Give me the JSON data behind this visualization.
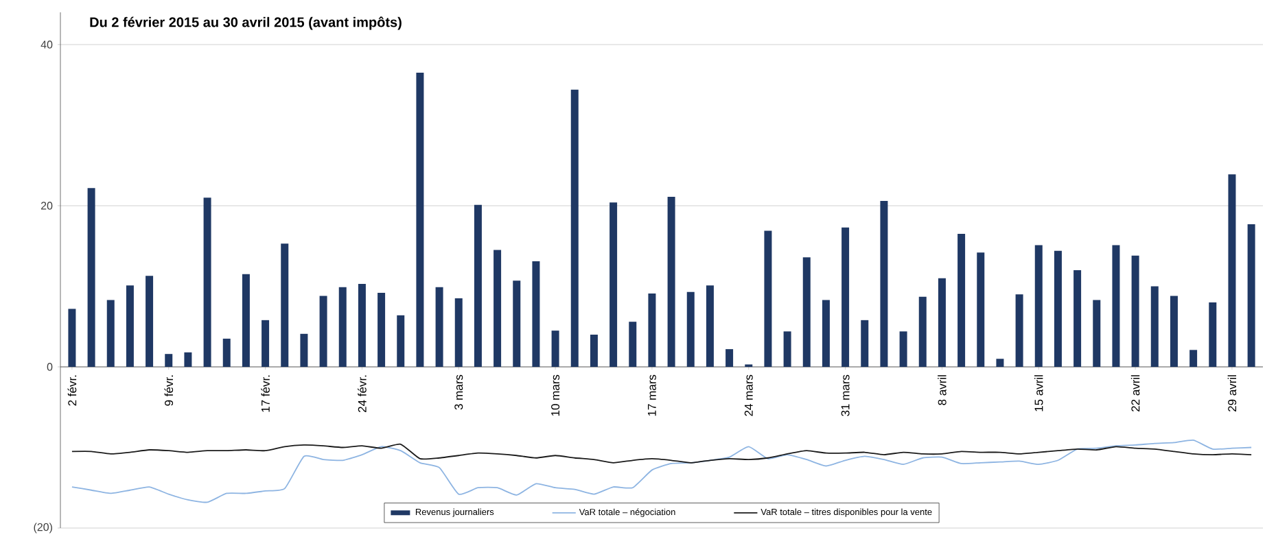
{
  "chart_data": {
    "type": "bar",
    "title": "Du 2 février 2015 au 30 avril 2015 (avant impôts)",
    "categories": [
      "2 févr.",
      null,
      null,
      null,
      null,
      "9 févr.",
      null,
      null,
      null,
      null,
      "17 févr.",
      null,
      null,
      null,
      null,
      "24 févr.",
      null,
      null,
      null,
      null,
      "3 mars",
      null,
      null,
      null,
      null,
      "10 mars",
      null,
      null,
      null,
      null,
      "17 mars",
      null,
      null,
      null,
      null,
      "24 mars",
      null,
      null,
      null,
      null,
      "31 mars",
      null,
      null,
      null,
      null,
      "8 avril",
      null,
      null,
      null,
      null,
      "15 avril",
      null,
      null,
      null,
      null,
      "22 avril",
      null,
      null,
      null,
      null,
      "29 avril",
      null
    ],
    "series": [
      {
        "name": "Revenus journaliers",
        "color": "#1f3864",
        "values": [
          7.2,
          22.2,
          8.3,
          10.1,
          11.3,
          1.6,
          1.8,
          21.0,
          3.5,
          11.5,
          5.8,
          15.3,
          4.1,
          8.8,
          9.9,
          10.3,
          9.2,
          6.4,
          36.5,
          9.9,
          8.5,
          20.1,
          14.5,
          10.7,
          13.1,
          4.5,
          34.4,
          4.0,
          20.4,
          5.6,
          9.1,
          21.1,
          9.3,
          10.1,
          2.2,
          0.3,
          16.9,
          4.4,
          13.6,
          8.3,
          17.3,
          5.8,
          20.6,
          4.4,
          8.7,
          11.0,
          16.5,
          14.2,
          1.0,
          9.0,
          15.1,
          14.4,
          12.0,
          8.3,
          15.1,
          13.8,
          10.0,
          8.8,
          2.1,
          8.0,
          23.9,
          17.7
        ]
      },
      {
        "name": "VaR totale – négociation",
        "type": "line",
        "color": "#8db4e2",
        "values": [
          -14.9,
          -15.3,
          -15.7,
          -15.3,
          -14.9,
          -15.8,
          -16.5,
          -16.8,
          -15.7,
          -15.7,
          -15.4,
          -15.1,
          -11.1,
          -11.5,
          -11.6,
          -10.9,
          -9.9,
          -10.4,
          -11.9,
          -12.5,
          -15.8,
          -15.0,
          -15.0,
          -15.9,
          -14.5,
          -15.0,
          -15.2,
          -15.8,
          -14.9,
          -15.0,
          -12.8,
          -12.0,
          -11.9,
          -11.6,
          -11.2,
          -9.9,
          -11.4,
          -10.9,
          -11.5,
          -12.3,
          -11.6,
          -11.1,
          -11.5,
          -12.1,
          -11.3,
          -11.2,
          -12.0,
          -11.9,
          -11.8,
          -11.7,
          -12.1,
          -11.6,
          -10.2,
          -10.1,
          -9.8,
          -9.7,
          -9.5,
          -9.4,
          -9.1,
          -10.2,
          -10.1,
          -10.0
        ]
      },
      {
        "name": "VaR totale – titres disponibles pour la vente",
        "type": "line",
        "color": "#1a1a1a",
        "values": [
          -10.5,
          -10.5,
          -10.8,
          -10.6,
          -10.3,
          -10.4,
          -10.6,
          -10.4,
          -10.4,
          -10.3,
          -10.4,
          -9.9,
          -9.7,
          -9.8,
          -10.0,
          -9.8,
          -10.1,
          -9.6,
          -11.4,
          -11.3,
          -11.0,
          -10.7,
          -10.8,
          -11.0,
          -11.3,
          -11.0,
          -11.3,
          -11.5,
          -11.9,
          -11.6,
          -11.4,
          -11.6,
          -11.9,
          -11.6,
          -11.4,
          -11.5,
          -11.3,
          -10.8,
          -10.4,
          -10.7,
          -10.7,
          -10.6,
          -10.9,
          -10.6,
          -10.8,
          -10.8,
          -10.5,
          -10.6,
          -10.6,
          -10.8,
          -10.6,
          -10.4,
          -10.2,
          -10.3,
          -9.9,
          -10.1,
          -10.2,
          -10.5,
          -10.8,
          -10.9,
          -10.8,
          -10.9
        ]
      }
    ],
    "ylim": [
      -20,
      44
    ],
    "yticks": [
      {
        "value": -20,
        "label": "(20)"
      },
      0,
      20,
      40
    ],
    "grid": "y",
    "legend": "bottom"
  }
}
